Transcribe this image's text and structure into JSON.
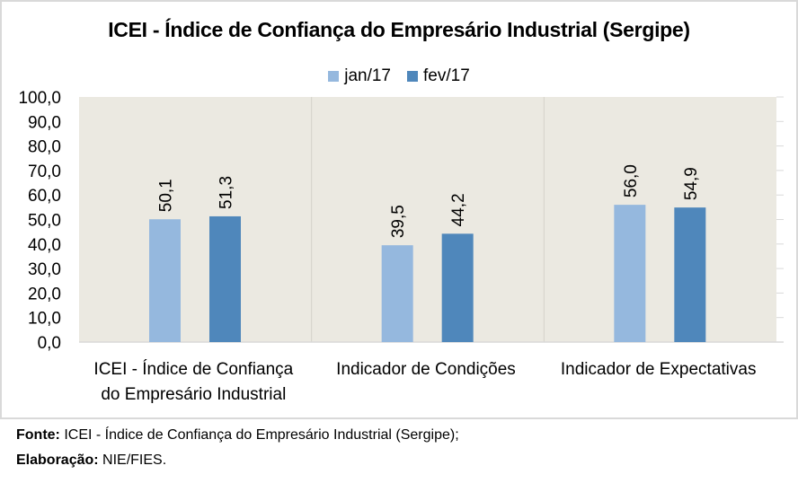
{
  "chart_data": {
    "type": "bar",
    "title": "ICEI - Índice de Confiança do Empresário Industrial (Sergipe)",
    "categories": [
      [
        "ICEI - Índice de Confiança",
        "do Empresário Industrial"
      ],
      [
        "Indicador de Condições"
      ],
      [
        "Indicador de Expectativas"
      ]
    ],
    "series": [
      {
        "name": "jan/17",
        "color": "#95b8de",
        "values": [
          50.1,
          39.5,
          56.0
        ],
        "labels": [
          "50,1",
          "39,5",
          "56,0"
        ]
      },
      {
        "name": "fev/17",
        "color": "#4f87bb",
        "values": [
          51.3,
          44.2,
          54.9
        ],
        "labels": [
          "51,3",
          "44,2",
          "54,9"
        ]
      }
    ],
    "ylim": [
      0,
      100
    ],
    "yticks": [
      0,
      10,
      20,
      30,
      40,
      50,
      60,
      70,
      80,
      90,
      100
    ],
    "ytick_labels": [
      "0,0",
      "10,0",
      "20,0",
      "30,0",
      "40,0",
      "50,0",
      "60,0",
      "70,0",
      "80,0",
      "90,0",
      "100,0"
    ],
    "xlabel": "",
    "ylabel": "",
    "legend_position": "top-center",
    "grid": false,
    "plot_background": "#ebe9e1"
  },
  "footer": {
    "source_label": "Fonte:",
    "source_text": " ICEI - Índice de Confiança do Empresário Industrial (Sergipe);",
    "credit_label": "Elaboração:",
    "credit_text": " NIE/FIES."
  }
}
